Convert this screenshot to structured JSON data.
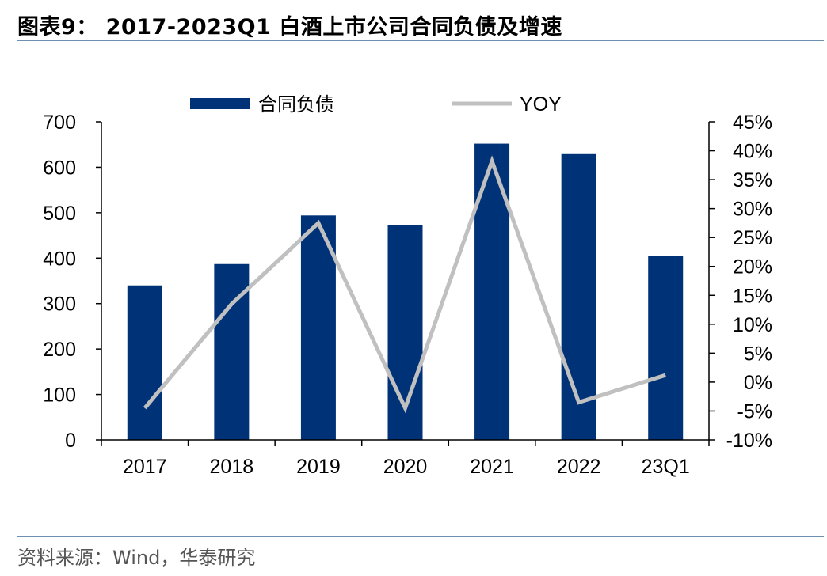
{
  "figure": {
    "title": "图表9： 2017-2023Q1 白酒上市公司合同负债及增速",
    "source": "资料来源：Wind，华泰研究"
  },
  "chart_data": {
    "type": "bar",
    "categories": [
      "2017",
      "2018",
      "2019",
      "2020",
      "2021",
      "2022",
      "23Q1"
    ],
    "series": [
      {
        "name": "合同负债",
        "type": "bar",
        "axis": "left",
        "color": "#003278",
        "values": [
          340,
          387,
          494,
          472,
          652,
          629,
          405
        ]
      },
      {
        "name": "YOY",
        "type": "line",
        "axis": "right",
        "color": "#c0c0c0",
        "values": [
          -4.5,
          13.5,
          27.5,
          -4.5,
          38.2,
          -3.5,
          1.2
        ]
      }
    ],
    "y_left": {
      "min": 0,
      "max": 700,
      "step": 100,
      "ticks": [
        "0",
        "100",
        "200",
        "300",
        "400",
        "500",
        "600",
        "700"
      ]
    },
    "y_right": {
      "min": -10,
      "max": 45,
      "step": 5,
      "ticks": [
        "-10%",
        "-5%",
        "0%",
        "5%",
        "10%",
        "15%",
        "20%",
        "25%",
        "30%",
        "35%",
        "40%",
        "45%"
      ]
    },
    "legend_position": "top",
    "grid": false
  }
}
